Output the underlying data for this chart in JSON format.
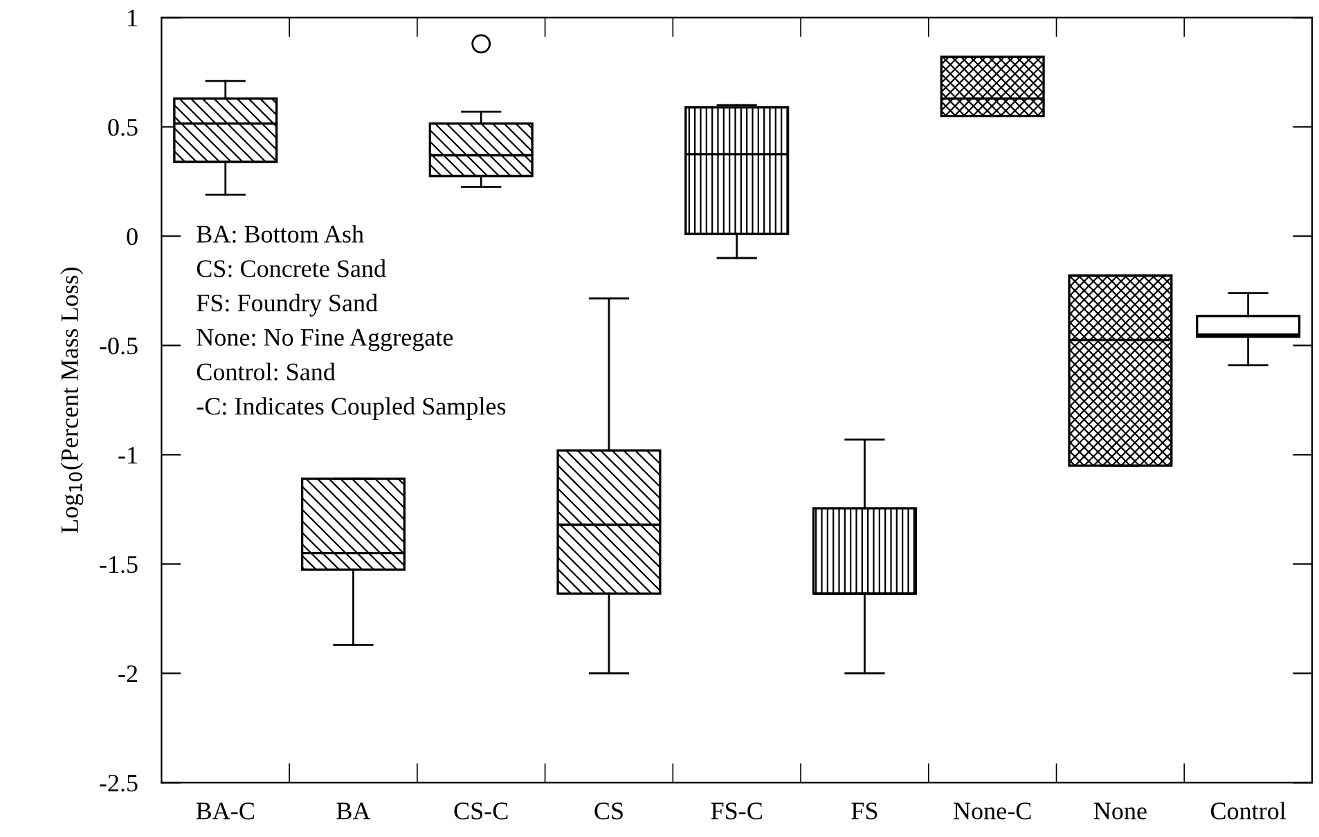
{
  "chart_data": {
    "type": "box",
    "ylabel": "Log$_{10}$(Percent Mass Loss)",
    "categories": [
      "BA-C",
      "BA",
      "CS-C",
      "CS",
      "FS-C",
      "FS",
      "None-C",
      "None",
      "Control"
    ],
    "boxes": [
      {
        "low": 0.19,
        "q1": 0.34,
        "median": 0.515,
        "q3": 0.63,
        "high": 0.71
      },
      {
        "low": -1.87,
        "q1": -1.525,
        "median": -1.45,
        "q3": -1.11,
        "high": -1.11
      },
      {
        "low": 0.225,
        "q1": 0.275,
        "median": 0.37,
        "q3": 0.515,
        "high": 0.57,
        "outliers": [
          0.88
        ]
      },
      {
        "low": -2.0,
        "q1": -1.635,
        "median": -1.32,
        "q3": -0.98,
        "high": -0.285
      },
      {
        "low": -0.1,
        "q1": 0.01,
        "median": 0.375,
        "q3": 0.59,
        "high": 0.6
      },
      {
        "low": -2.0,
        "q1": -1.635,
        "median": -1.635,
        "q3": -1.245,
        "high": -0.93
      },
      {
        "low": 0.55,
        "q1": 0.55,
        "median": 0.63,
        "q3": 0.82,
        "high": 0.82
      },
      {
        "low": -1.05,
        "q1": -1.05,
        "median": -0.475,
        "q3": -0.18,
        "high": -0.18
      },
      {
        "low": -0.59,
        "q1": -0.46,
        "median": -0.45,
        "q3": -0.365,
        "high": -0.26
      }
    ],
    "ylim": [
      -2.5,
      1
    ],
    "yticks": [
      -2.5,
      -2,
      -1.5,
      -1,
      -0.5,
      0,
      0.5,
      1
    ],
    "grid": false,
    "annotations": [
      "BA: Bottom Ash",
      "CS: Concrete Sand",
      "FS: Foundry Sand",
      "None: No Fine Aggregate",
      "Control: Sand",
      "-C: Indicates Coupled Samples"
    ]
  }
}
